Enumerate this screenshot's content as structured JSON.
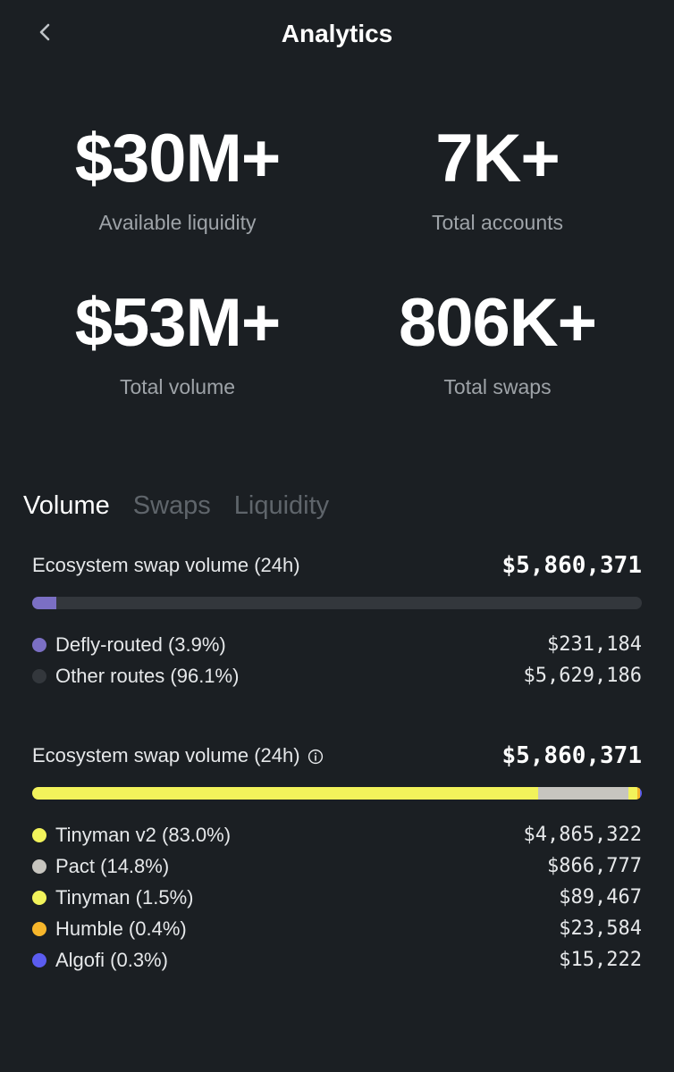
{
  "header": {
    "title": "Analytics",
    "back_icon": "chevron-left-icon"
  },
  "stats": [
    {
      "value": "$30M+",
      "label": "Available liquidity"
    },
    {
      "value": "7K+",
      "label": "Total accounts"
    },
    {
      "value": "$53M+",
      "label": "Total volume"
    },
    {
      "value": "806K+",
      "label": "Total swaps"
    }
  ],
  "tabs": [
    {
      "label": "Volume",
      "active": true
    },
    {
      "label": "Swaps",
      "active": false
    },
    {
      "label": "Liquidity",
      "active": false
    }
  ],
  "routing": {
    "title": "Ecosystem swap volume (24h)",
    "total": "$5,860,371",
    "items": [
      {
        "label": "Defly-routed (3.9%)",
        "value": "$231,184",
        "share": 3.9,
        "color": "#7b6fc4"
      },
      {
        "label": "Other routes (96.1%)",
        "value": "$5,629,186",
        "share": 96.1,
        "color": "#33373c"
      }
    ]
  },
  "dex": {
    "title": "Ecosystem swap volume (24h)",
    "info_icon": "info-circle-icon",
    "total": "$5,860,371",
    "items": [
      {
        "label": "Tinyman v2 (83.0%)",
        "value": "$4,865,322",
        "share": 83.0,
        "color": "#f2f35b"
      },
      {
        "label": "Pact (14.8%)",
        "value": "$866,777",
        "share": 14.8,
        "color": "#c7c5bf"
      },
      {
        "label": "Tinyman (1.5%)",
        "value": "$89,467",
        "share": 1.5,
        "color": "#f2f35b"
      },
      {
        "label": "Humble (0.4%)",
        "value": "$23,584",
        "share": 0.4,
        "color": "#f7b62b"
      },
      {
        "label": "Algofi (0.3%)",
        "value": "$15,222",
        "share": 0.3,
        "color": "#5b5cf0"
      }
    ]
  }
}
